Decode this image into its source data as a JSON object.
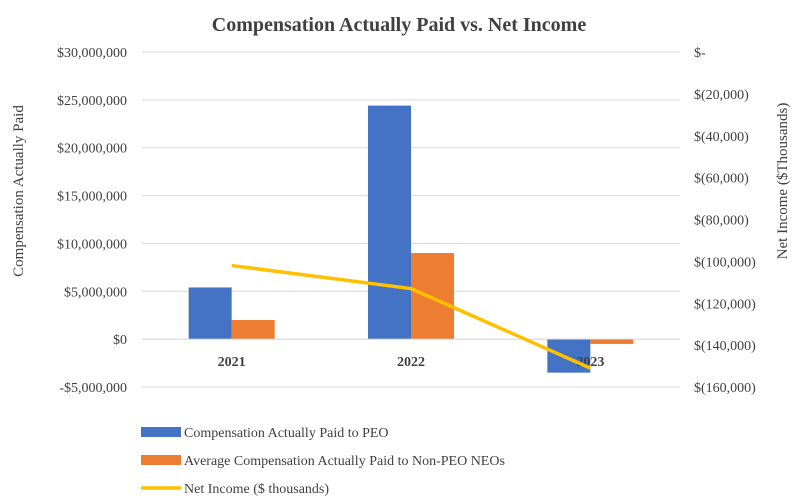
{
  "chart_data": {
    "type": "bar",
    "title": "Compensation Actually Paid vs. Net Income",
    "categories": [
      "2021",
      "2022",
      "2023"
    ],
    "ylabel": "Compensation Actually Paid",
    "y2label": "Net Income ($Thousands)",
    "ylim": [
      -5000000,
      30000000
    ],
    "y2lim": [
      -160000,
      0
    ],
    "y_ticks": [
      30000000,
      25000000,
      20000000,
      15000000,
      10000000,
      5000000,
      0,
      -5000000
    ],
    "y_tick_labels": [
      "$30,000,000",
      "$25,000,000",
      "$20,000,000",
      "$15,000,000",
      "$10,000,000",
      "$5,000,000",
      "$0",
      "-$5,000,000"
    ],
    "y2_ticks": [
      0,
      -20000,
      -40000,
      -60000,
      -80000,
      -100000,
      -120000,
      -140000,
      -160000
    ],
    "y2_tick_labels": [
      "$-",
      "$(20,000)",
      "$(40,000)",
      "$(60,000)",
      "$(80,000)",
      "$(100,000)",
      "$(120,000)",
      "$(140,000)",
      "$(160,000)"
    ],
    "grid": true,
    "legend_position": "bottom-left",
    "series": [
      {
        "name": "Compensation Actually Paid to PEO",
        "type": "bar",
        "axis": "left",
        "color": "#4472C4",
        "values": [
          5400000,
          24400000,
          -3500000
        ]
      },
      {
        "name": "Average Compensation Actually Paid to Non-PEO NEOs",
        "type": "bar",
        "axis": "left",
        "color": "#ED7D31",
        "values": [
          2000000,
          9000000,
          -500000
        ]
      },
      {
        "name": "Net Income ($ thousands)",
        "type": "line",
        "axis": "right",
        "color": "#FFC000",
        "values": [
          -102000,
          -113000,
          -151000
        ]
      }
    ]
  }
}
